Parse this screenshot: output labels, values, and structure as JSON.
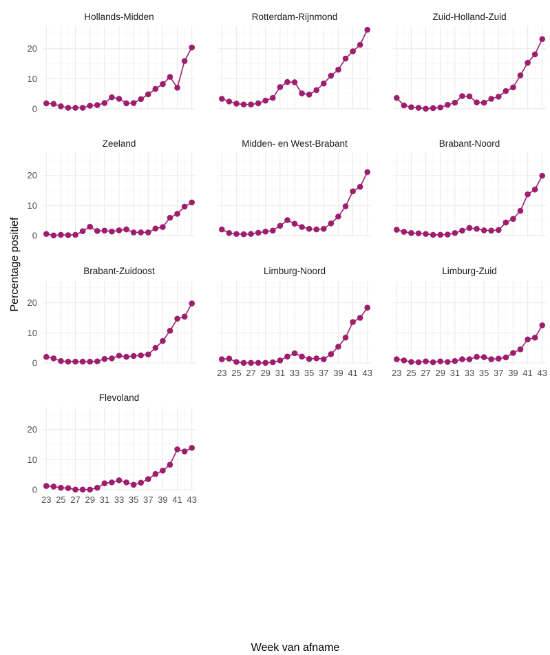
{
  "chart_data": {
    "type": "line",
    "xlabel": "Week van afname",
    "ylabel": "Percentage positief",
    "x": [
      23,
      24,
      25,
      26,
      27,
      28,
      29,
      30,
      31,
      32,
      33,
      34,
      35,
      36,
      37,
      38,
      39,
      40,
      41,
      42,
      43
    ],
    "xlim": [
      22.5,
      43.5
    ],
    "ylim": [
      -0.5,
      27.5
    ],
    "x_ticks": [
      23,
      25,
      27,
      29,
      31,
      33,
      35,
      37,
      39,
      41,
      43
    ],
    "y_ticks": [
      0,
      10,
      20
    ],
    "grid": true,
    "line_color": "#9E1E6E",
    "panels": [
      {
        "name": "Hollands-Midden",
        "values": [
          1.8,
          1.6,
          0.8,
          0.3,
          0.3,
          0.3,
          1.0,
          1.2,
          1.9,
          3.8,
          3.3,
          1.8,
          1.9,
          3.2,
          4.8,
          6.6,
          8.2,
          10.6,
          7.0,
          15.9,
          20.4
        ]
      },
      {
        "name": "Rotterdam-Rijnmond",
        "values": [
          3.3,
          2.4,
          1.7,
          1.4,
          1.4,
          1.8,
          2.7,
          3.6,
          7.2,
          8.9,
          8.8,
          5.1,
          4.7,
          6.2,
          8.4,
          11.0,
          13.0,
          16.7,
          19.1,
          21.3,
          26.3
        ]
      },
      {
        "name": "Zuid-Holland-Zuid",
        "values": [
          3.6,
          1.1,
          0.5,
          0.3,
          0.0,
          0.2,
          0.4,
          1.3,
          2.0,
          4.2,
          4.1,
          2.1,
          2.0,
          3.3,
          4.0,
          5.9,
          7.1,
          11.1,
          15.3,
          18.1,
          23.2
        ]
      },
      {
        "name": "Zeeland",
        "values": [
          0.5,
          0.0,
          0.2,
          0.1,
          0.2,
          1.4,
          2.9,
          1.5,
          1.6,
          1.3,
          1.7,
          2.0,
          1.0,
          1.0,
          1.0,
          2.3,
          2.8,
          5.9,
          7.2,
          9.6,
          11.0
        ]
      },
      {
        "name": "Midden- en West-Brabant",
        "values": [
          2.0,
          0.8,
          0.5,
          0.4,
          0.5,
          0.9,
          1.3,
          1.6,
          3.2,
          5.1,
          3.9,
          2.8,
          2.2,
          2.0,
          2.2,
          4.0,
          6.3,
          9.7,
          14.7,
          16.2,
          21.1
        ]
      },
      {
        "name": "Brabant-Noord",
        "values": [
          1.9,
          1.2,
          0.8,
          0.7,
          0.5,
          0.2,
          0.2,
          0.3,
          0.8,
          1.6,
          2.5,
          2.2,
          1.7,
          1.6,
          1.8,
          4.3,
          5.5,
          8.2,
          13.7,
          15.3,
          19.9
        ]
      },
      {
        "name": "Brabant-Zuidoost",
        "values": [
          2.0,
          1.5,
          0.6,
          0.4,
          0.4,
          0.4,
          0.4,
          0.5,
          1.3,
          1.5,
          2.4,
          2.0,
          2.3,
          2.5,
          2.8,
          5.0,
          7.3,
          10.7,
          14.7,
          15.4,
          19.8
        ]
      },
      {
        "name": "Limburg-Noord",
        "values": [
          1.2,
          1.4,
          0.3,
          0.0,
          0.0,
          0.0,
          0.0,
          0.2,
          0.8,
          2.1,
          3.2,
          2.1,
          1.3,
          1.5,
          1.2,
          2.9,
          5.4,
          8.4,
          13.6,
          15.0,
          18.4
        ]
      },
      {
        "name": "Limburg-Zuid",
        "values": [
          1.2,
          0.8,
          0.3,
          0.2,
          0.5,
          0.2,
          0.5,
          0.3,
          0.6,
          1.2,
          1.2,
          2.0,
          1.9,
          1.2,
          1.4,
          1.8,
          3.3,
          4.5,
          7.8,
          8.4,
          12.5
        ]
      },
      {
        "name": "Flevoland",
        "values": [
          1.2,
          1.0,
          0.6,
          0.5,
          0.0,
          0.0,
          0.0,
          0.6,
          2.1,
          2.4,
          3.1,
          2.4,
          1.6,
          2.3,
          3.5,
          5.2,
          6.3,
          8.3,
          13.4,
          12.7,
          13.9
        ]
      }
    ]
  }
}
